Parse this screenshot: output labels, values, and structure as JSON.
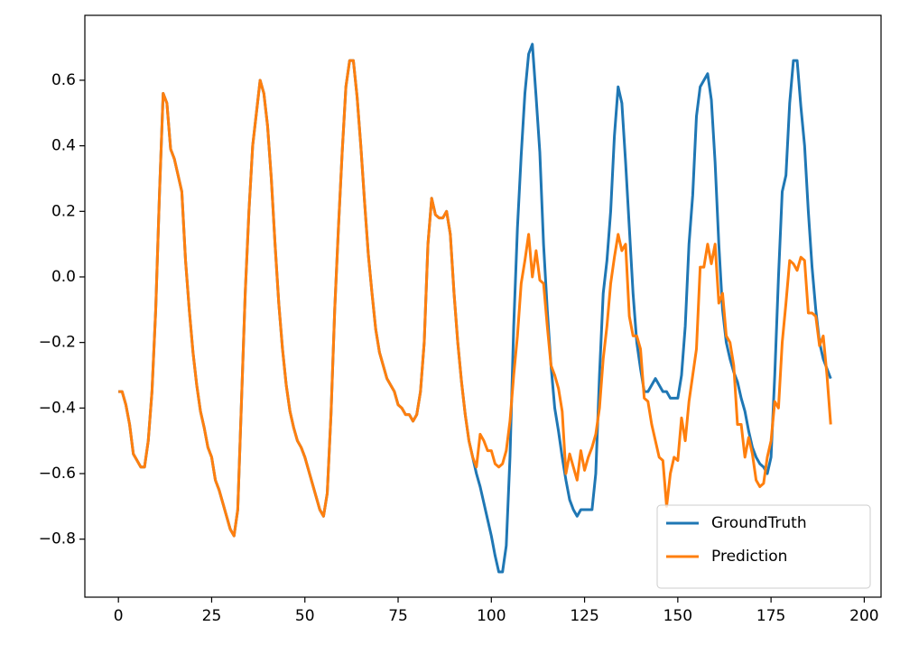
{
  "chart_data": {
    "type": "line",
    "x": [
      0,
      1,
      2,
      3,
      4,
      5,
      6,
      7,
      8,
      9,
      10,
      11,
      12,
      13,
      14,
      15,
      16,
      17,
      18,
      19,
      20,
      21,
      22,
      23,
      24,
      25,
      26,
      27,
      28,
      29,
      30,
      31,
      32,
      33,
      34,
      35,
      36,
      37,
      38,
      39,
      40,
      41,
      42,
      43,
      44,
      45,
      46,
      47,
      48,
      49,
      50,
      51,
      52,
      53,
      54,
      55,
      56,
      57,
      58,
      59,
      60,
      61,
      62,
      63,
      64,
      65,
      66,
      67,
      68,
      69,
      70,
      71,
      72,
      73,
      74,
      75,
      76,
      77,
      78,
      79,
      80,
      81,
      82,
      83,
      84,
      85,
      86,
      87,
      88,
      89,
      90,
      91,
      92,
      93,
      94,
      95,
      96,
      97,
      98,
      99,
      100,
      101,
      102,
      103,
      104,
      105,
      106,
      107,
      108,
      109,
      110,
      111,
      112,
      113,
      114,
      115,
      116,
      117,
      118,
      119,
      120,
      121,
      122,
      123,
      124,
      125,
      126,
      127,
      128,
      129,
      130,
      131,
      132,
      133,
      134,
      135,
      136,
      137,
      138,
      139,
      140,
      141,
      142,
      143,
      144,
      145,
      146,
      147,
      148,
      149,
      150,
      151,
      152,
      153,
      154,
      155,
      156,
      157,
      158,
      159,
      160,
      161,
      162,
      163,
      164,
      165,
      166,
      167,
      168,
      169,
      170,
      171,
      172,
      173,
      174,
      175,
      176,
      177,
      178,
      179,
      180,
      181,
      182,
      183,
      184,
      185,
      186,
      187,
      188,
      189,
      190,
      191
    ],
    "series": [
      {
        "name": "GroundTruth",
        "color": "#1f77b4",
        "values": [
          -0.35,
          -0.35,
          -0.39,
          -0.45,
          -0.54,
          -0.56,
          -0.58,
          -0.58,
          -0.5,
          -0.35,
          -0.1,
          0.25,
          0.56,
          0.53,
          0.39,
          0.36,
          0.31,
          0.26,
          0.05,
          -0.1,
          -0.23,
          -0.33,
          -0.41,
          -0.46,
          -0.52,
          -0.55,
          -0.62,
          -0.65,
          -0.69,
          -0.73,
          -0.77,
          -0.79,
          -0.71,
          -0.38,
          -0.05,
          0.2,
          0.4,
          0.5,
          0.6,
          0.56,
          0.46,
          0.3,
          0.1,
          -0.08,
          -0.22,
          -0.33,
          -0.41,
          -0.46,
          -0.5,
          -0.52,
          -0.55,
          -0.59,
          -0.63,
          -0.67,
          -0.71,
          -0.73,
          -0.66,
          -0.42,
          -0.1,
          0.15,
          0.38,
          0.58,
          0.66,
          0.66,
          0.55,
          0.4,
          0.23,
          0.07,
          -0.05,
          -0.16,
          -0.23,
          -0.27,
          -0.31,
          -0.33,
          -0.35,
          -0.39,
          -0.4,
          -0.42,
          -0.42,
          -0.44,
          -0.42,
          -0.35,
          -0.2,
          0.1,
          0.24,
          0.19,
          0.18,
          0.18,
          0.2,
          0.13,
          -0.05,
          -0.2,
          -0.32,
          -0.42,
          -0.5,
          -0.55,
          -0.6,
          -0.64,
          -0.69,
          -0.74,
          -0.79,
          -0.85,
          -0.9,
          -0.9,
          -0.82,
          -0.55,
          -0.15,
          0.15,
          0.37,
          0.56,
          0.68,
          0.71,
          0.55,
          0.38,
          0.1,
          -0.1,
          -0.27,
          -0.4,
          -0.47,
          -0.55,
          -0.62,
          -0.68,
          -0.71,
          -0.73,
          -0.71,
          -0.71,
          -0.71,
          -0.71,
          -0.6,
          -0.3,
          -0.05,
          0.05,
          0.2,
          0.43,
          0.58,
          0.53,
          0.35,
          0.15,
          -0.05,
          -0.2,
          -0.28,
          -0.35,
          -0.35,
          -0.33,
          -0.31,
          -0.33,
          -0.35,
          -0.35,
          -0.37,
          -0.37,
          -0.37,
          -0.3,
          -0.15,
          0.1,
          0.25,
          0.49,
          0.58,
          0.6,
          0.62,
          0.54,
          0.35,
          0.1,
          -0.1,
          -0.2,
          -0.25,
          -0.29,
          -0.32,
          -0.37,
          -0.41,
          -0.47,
          -0.52,
          -0.55,
          -0.57,
          -0.58,
          -0.6,
          -0.55,
          -0.3,
          0.0,
          0.26,
          0.31,
          0.53,
          0.66,
          0.66,
          0.52,
          0.4,
          0.2,
          0.03,
          -0.1,
          -0.2,
          -0.25,
          -0.28,
          -0.31
        ]
      },
      {
        "name": "Prediction",
        "color": "#ff7f0e",
        "values": [
          -0.35,
          -0.35,
          -0.39,
          -0.45,
          -0.54,
          -0.56,
          -0.58,
          -0.58,
          -0.5,
          -0.35,
          -0.1,
          0.25,
          0.56,
          0.53,
          0.39,
          0.36,
          0.31,
          0.26,
          0.05,
          -0.1,
          -0.23,
          -0.33,
          -0.41,
          -0.46,
          -0.52,
          -0.55,
          -0.62,
          -0.65,
          -0.69,
          -0.73,
          -0.77,
          -0.79,
          -0.71,
          -0.38,
          -0.05,
          0.2,
          0.4,
          0.5,
          0.6,
          0.56,
          0.46,
          0.3,
          0.1,
          -0.08,
          -0.22,
          -0.33,
          -0.41,
          -0.46,
          -0.5,
          -0.52,
          -0.55,
          -0.59,
          -0.63,
          -0.67,
          -0.71,
          -0.73,
          -0.66,
          -0.42,
          -0.1,
          0.15,
          0.38,
          0.58,
          0.66,
          0.66,
          0.55,
          0.4,
          0.23,
          0.07,
          -0.05,
          -0.16,
          -0.23,
          -0.27,
          -0.31,
          -0.33,
          -0.35,
          -0.39,
          -0.4,
          -0.42,
          -0.42,
          -0.44,
          -0.42,
          -0.35,
          -0.2,
          0.1,
          0.24,
          0.19,
          0.18,
          0.18,
          0.2,
          0.13,
          -0.05,
          -0.2,
          -0.32,
          -0.42,
          -0.5,
          -0.55,
          -0.58,
          -0.48,
          -0.5,
          -0.53,
          -0.53,
          -0.57,
          -0.58,
          -0.57,
          -0.53,
          -0.44,
          -0.3,
          -0.18,
          -0.02,
          0.05,
          0.13,
          0.0,
          0.08,
          -0.01,
          -0.02,
          -0.15,
          -0.27,
          -0.3,
          -0.34,
          -0.41,
          -0.6,
          -0.54,
          -0.58,
          -0.62,
          -0.53,
          -0.59,
          -0.55,
          -0.52,
          -0.48,
          -0.4,
          -0.25,
          -0.15,
          -0.02,
          0.06,
          0.13,
          0.08,
          0.1,
          -0.12,
          -0.18,
          -0.18,
          -0.22,
          -0.37,
          -0.38,
          -0.45,
          -0.5,
          -0.55,
          -0.56,
          -0.7,
          -0.6,
          -0.55,
          -0.56,
          -0.43,
          -0.5,
          -0.38,
          -0.3,
          -0.22,
          0.03,
          0.03,
          0.1,
          0.04,
          0.1,
          -0.08,
          -0.05,
          -0.18,
          -0.2,
          -0.27,
          -0.45,
          -0.45,
          -0.55,
          -0.49,
          -0.54,
          -0.62,
          -0.64,
          -0.63,
          -0.55,
          -0.5,
          -0.38,
          -0.4,
          -0.2,
          -0.08,
          0.05,
          0.04,
          0.02,
          0.06,
          0.05,
          -0.11,
          -0.11,
          -0.12,
          -0.21,
          -0.18,
          -0.3,
          -0.45
        ]
      }
    ],
    "xlim": [
      -9,
      204.5
    ],
    "xticks": [
      0,
      25,
      50,
      75,
      100,
      125,
      150,
      175,
      200
    ],
    "ylim": [
      -0.977,
      0.798
    ],
    "yticks": [
      {
        "value": -0.8,
        "label": "−0.8"
      },
      {
        "value": -0.6,
        "label": "−0.6"
      },
      {
        "value": -0.4,
        "label": "−0.4"
      },
      {
        "value": -0.2,
        "label": "−0.2"
      },
      {
        "value": 0,
        "label": "0.0"
      },
      0.2,
      0.4,
      0.6
    ],
    "legend": "lower right"
  }
}
